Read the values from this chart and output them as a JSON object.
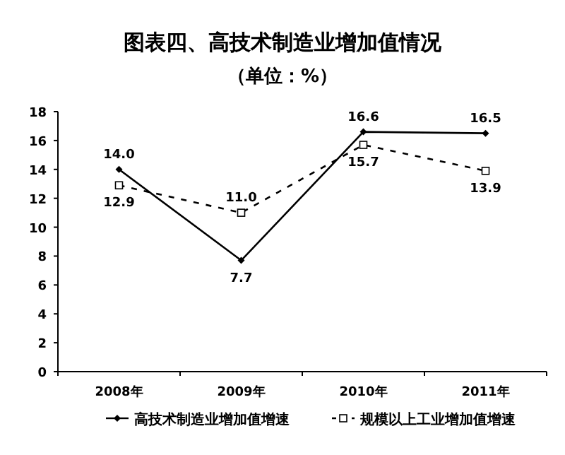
{
  "chart_data": {
    "type": "line",
    "title": "图表四、高技术制造业增加值情况",
    "subtitle": "（单位：%）",
    "categories": [
      "2008年",
      "2009年",
      "2010年",
      "2011年"
    ],
    "series": [
      {
        "name": "高技术制造业增加值增速",
        "color": "#000000",
        "values": [
          14.0,
          7.7,
          16.6,
          16.5
        ],
        "value_labels": [
          "14.0",
          "7.7",
          "16.6",
          "16.5"
        ],
        "marker": "diamond",
        "line_style": "solid"
      },
      {
        "name": "规模以上工业增加值增速",
        "color": "#000000",
        "values": [
          12.9,
          11.0,
          15.7,
          13.9
        ],
        "value_labels": [
          "12.9",
          "11.0",
          "15.7",
          "13.9"
        ],
        "marker": "square",
        "line_style": "dashed"
      }
    ],
    "ylim": [
      0,
      18
    ],
    "yticks": [
      0,
      2,
      4,
      6,
      8,
      10,
      12,
      14,
      16,
      18
    ],
    "legend": "bottom"
  }
}
